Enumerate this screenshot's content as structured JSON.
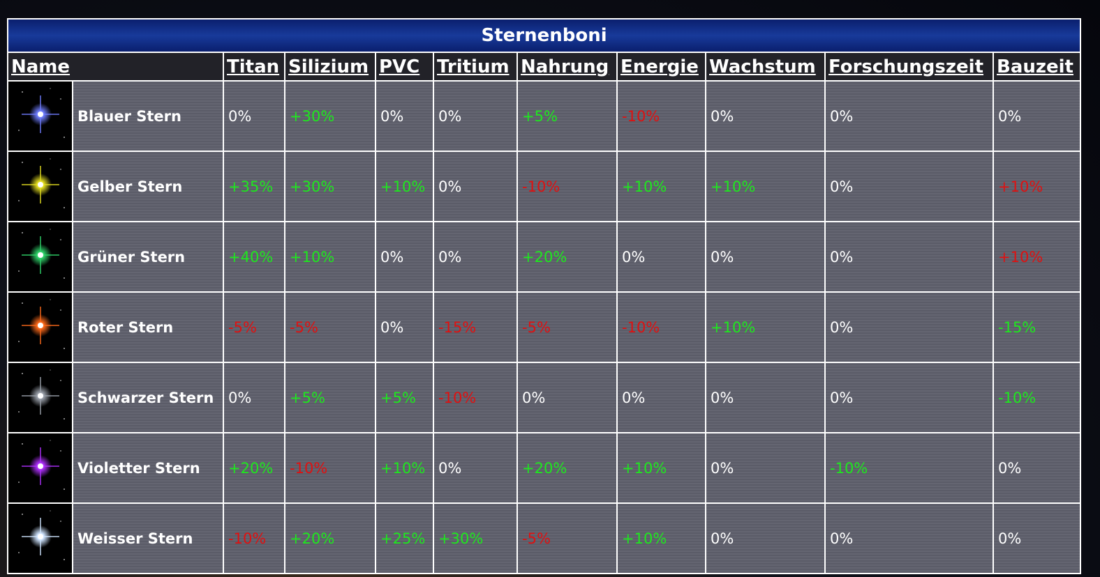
{
  "table": {
    "title": "Sternenboni",
    "headers": [
      "Name",
      "Titan",
      "Silizium",
      "PVC",
      "Tritium",
      "Nahrung",
      "Energie",
      "Wachstum",
      "Forschungszeit",
      "Bauzeit"
    ],
    "rows": [
      {
        "icon_color": "#6f7dff",
        "name": "Blauer Stern",
        "values": [
          "0%",
          "+30%",
          "0%",
          "0%",
          "+5%",
          "-10%",
          "0%",
          "0%",
          "0%"
        ],
        "colors": [
          "white",
          "green",
          "white",
          "white",
          "green",
          "red",
          "white",
          "white",
          "white"
        ]
      },
      {
        "icon_color": "#e6e020",
        "name": "Gelber Stern",
        "values": [
          "+35%",
          "+30%",
          "+10%",
          "0%",
          "-10%",
          "+10%",
          "+10%",
          "0%",
          "+10%"
        ],
        "colors": [
          "green",
          "green",
          "green",
          "white",
          "red",
          "green",
          "green",
          "white",
          "red"
        ]
      },
      {
        "icon_color": "#2fd56a",
        "name": "Grüner Stern",
        "values": [
          "+40%",
          "+10%",
          "0%",
          "0%",
          "+20%",
          "0%",
          "0%",
          "0%",
          "+10%"
        ],
        "colors": [
          "green",
          "green",
          "white",
          "white",
          "green",
          "white",
          "white",
          "white",
          "red"
        ]
      },
      {
        "icon_color": "#ff6a1a",
        "name": "Roter Stern",
        "values": [
          "-5%",
          "-5%",
          "0%",
          "-15%",
          "-5%",
          "-10%",
          "+10%",
          "0%",
          "-15%"
        ],
        "colors": [
          "red",
          "red",
          "white",
          "red",
          "red",
          "red",
          "green",
          "white",
          "green"
        ]
      },
      {
        "icon_color": "#9aa0aa",
        "name": "Schwarzer Stern",
        "values": [
          "0%",
          "+5%",
          "+5%",
          "-10%",
          "0%",
          "0%",
          "0%",
          "0%",
          "-10%"
        ],
        "colors": [
          "white",
          "green",
          "green",
          "red",
          "white",
          "white",
          "white",
          "white",
          "green"
        ]
      },
      {
        "icon_color": "#b030ff",
        "name": "Violetter Stern",
        "values": [
          "+20%",
          "-10%",
          "+10%",
          "0%",
          "+20%",
          "+10%",
          "0%",
          "-10%",
          "0%"
        ],
        "colors": [
          "green",
          "red",
          "green",
          "white",
          "green",
          "green",
          "white",
          "green",
          "white"
        ]
      },
      {
        "icon_color": "#cfe4ff",
        "name": "Weisser Stern",
        "values": [
          "-10%",
          "+20%",
          "+25%",
          "+30%",
          "-5%",
          "+10%",
          "0%",
          "0%",
          "0%"
        ],
        "colors": [
          "red",
          "green",
          "green",
          "green",
          "red",
          "green",
          "white",
          "white",
          "white"
        ]
      }
    ]
  }
}
